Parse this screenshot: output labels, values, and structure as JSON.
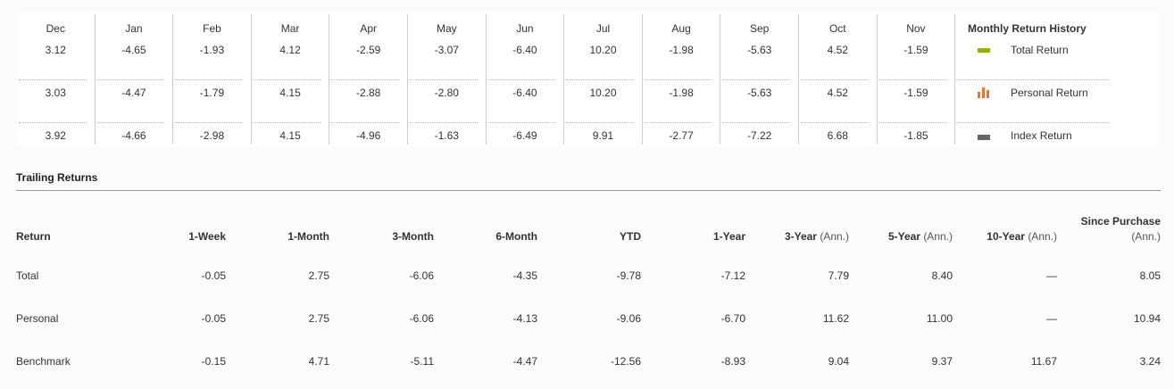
{
  "monthly": {
    "months": [
      "Dec",
      "Jan",
      "Feb",
      "Mar",
      "Apr",
      "May",
      "Jun",
      "Jul",
      "Aug",
      "Sep",
      "Oct",
      "Nov"
    ],
    "rows": [
      [
        "3.12",
        "-4.65",
        "-1.93",
        "4.12",
        "-2.59",
        "-3.07",
        "-6.40",
        "10.20",
        "-1.98",
        "-5.63",
        "4.52",
        "-1.59"
      ],
      [
        "3.03",
        "-4.47",
        "-1.79",
        "4.15",
        "-2.88",
        "-2.80",
        "-6.40",
        "10.20",
        "-1.98",
        "-5.63",
        "4.52",
        "-1.59"
      ],
      [
        "3.92",
        "-4.66",
        "-2.98",
        "4.15",
        "-4.96",
        "-1.63",
        "-6.49",
        "9.91",
        "-2.77",
        "-7.22",
        "6.68",
        "-1.85"
      ]
    ]
  },
  "legend": {
    "title": "Monthly Return History",
    "items": [
      {
        "label": "Total Return",
        "icon": "green-bar-icon",
        "color": "#8db600"
      },
      {
        "label": "Personal Return",
        "icon": "orange-bars-icon",
        "color": "#e8742f"
      },
      {
        "label": "Index Return",
        "icon": "gray-bar-icon",
        "color": "#666666"
      }
    ]
  },
  "trailing": {
    "title": "Trailing Returns",
    "headers": {
      "return": "Return",
      "w1": "1-Week",
      "m1": "1-Month",
      "m3": "3-Month",
      "m6": "6-Month",
      "ytd": "YTD",
      "y1": "1-Year",
      "y3": "3-Year",
      "y5": "5-Year",
      "y10": "10-Year",
      "since_line1": "Since Purchase",
      "ann": "(Ann.)"
    },
    "rows": [
      {
        "label": "Total",
        "values": [
          "-0.05",
          "2.75",
          "-6.06",
          "-4.35",
          "-9.78",
          "-7.12",
          "7.79",
          "8.40",
          "—",
          "8.05"
        ]
      },
      {
        "label": "Personal",
        "values": [
          "-0.05",
          "2.75",
          "-6.06",
          "-4.13",
          "-9.06",
          "-6.70",
          "11.62",
          "11.00",
          "—",
          "10.94"
        ]
      },
      {
        "label": "Benchmark",
        "values": [
          "-0.15",
          "4.71",
          "-5.11",
          "-4.47",
          "-12.56",
          "-8.93",
          "9.04",
          "9.37",
          "11.67",
          "3.24"
        ]
      }
    ]
  }
}
